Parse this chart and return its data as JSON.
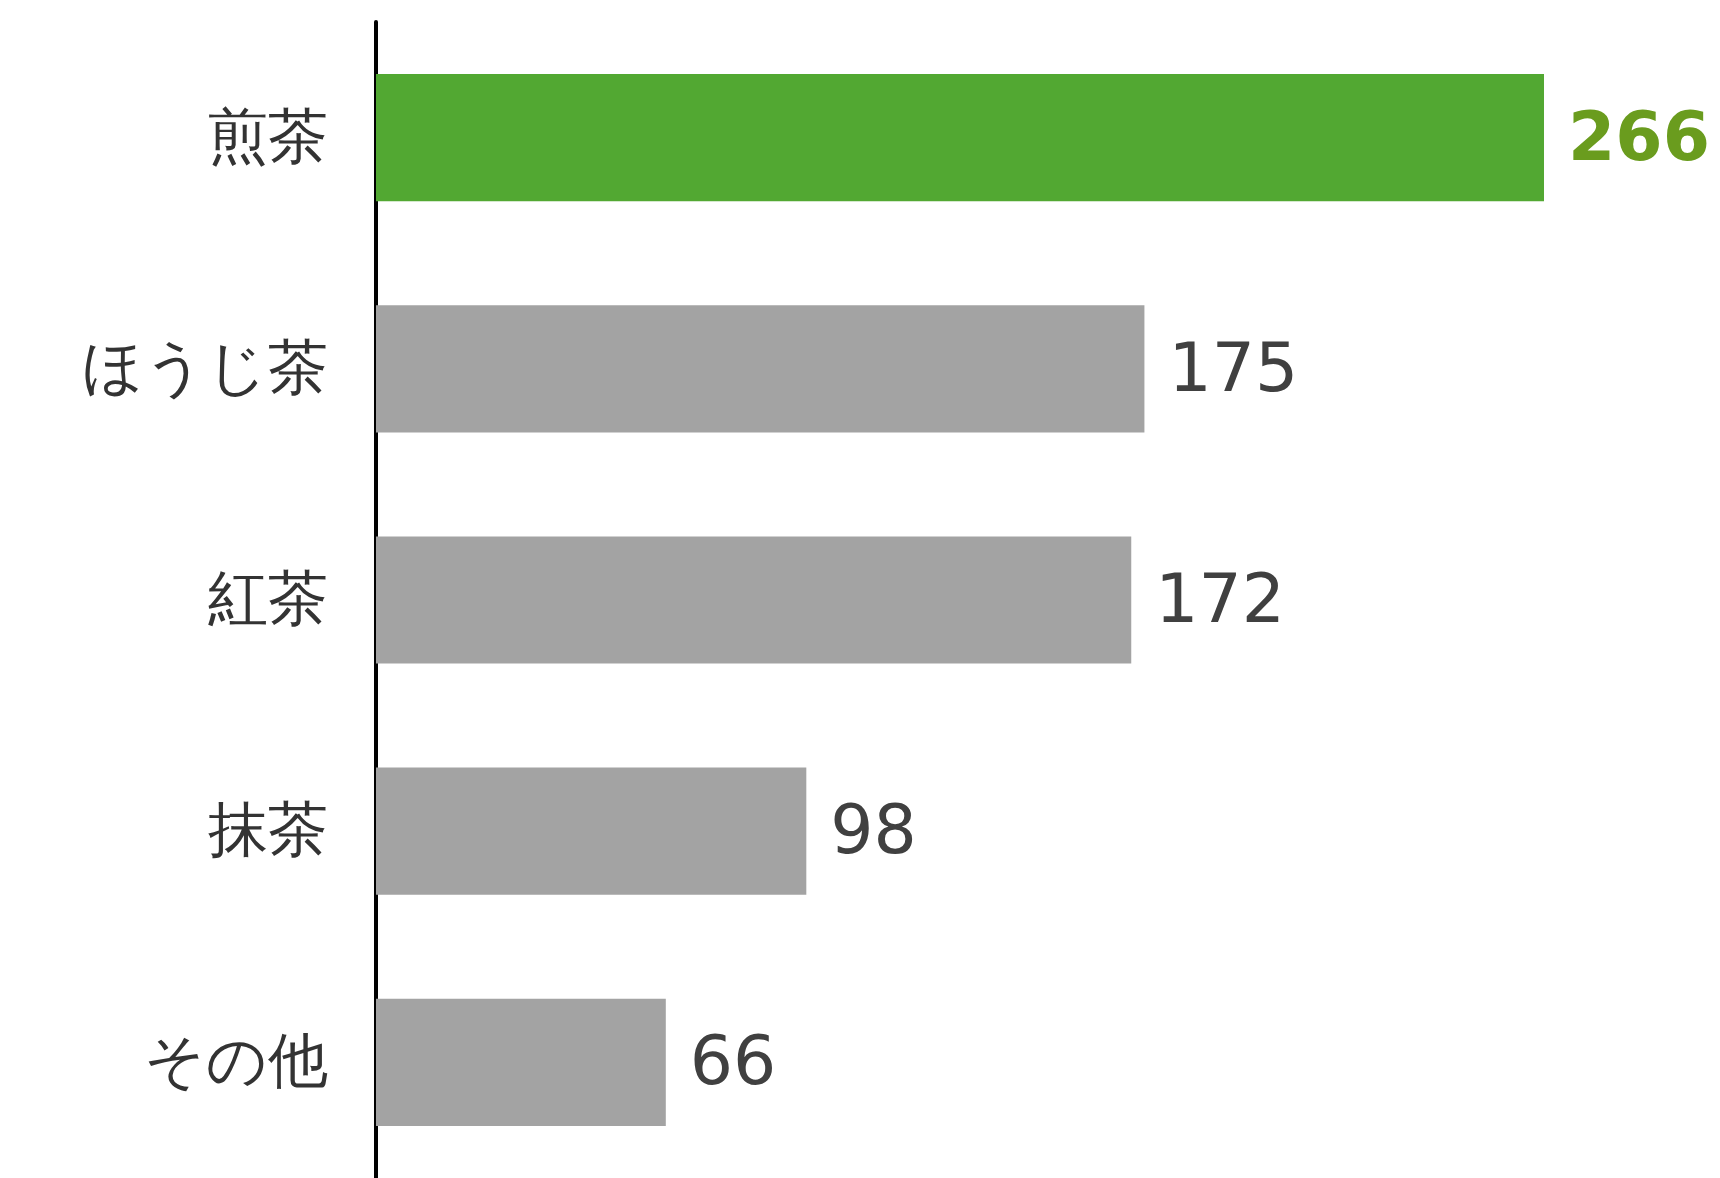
{
  "chart_data": {
    "type": "bar",
    "orientation": "horizontal",
    "categories": [
      "煎茶",
      "ほうじ茶",
      "紅茶",
      "抹茶",
      "その他"
    ],
    "values": [
      266,
      175,
      172,
      98,
      66
    ],
    "colors": [
      "#52a832",
      "#a3a3a3",
      "#a3a3a3",
      "#a3a3a3",
      "#a3a3a3"
    ],
    "data_labels": true
  }
}
